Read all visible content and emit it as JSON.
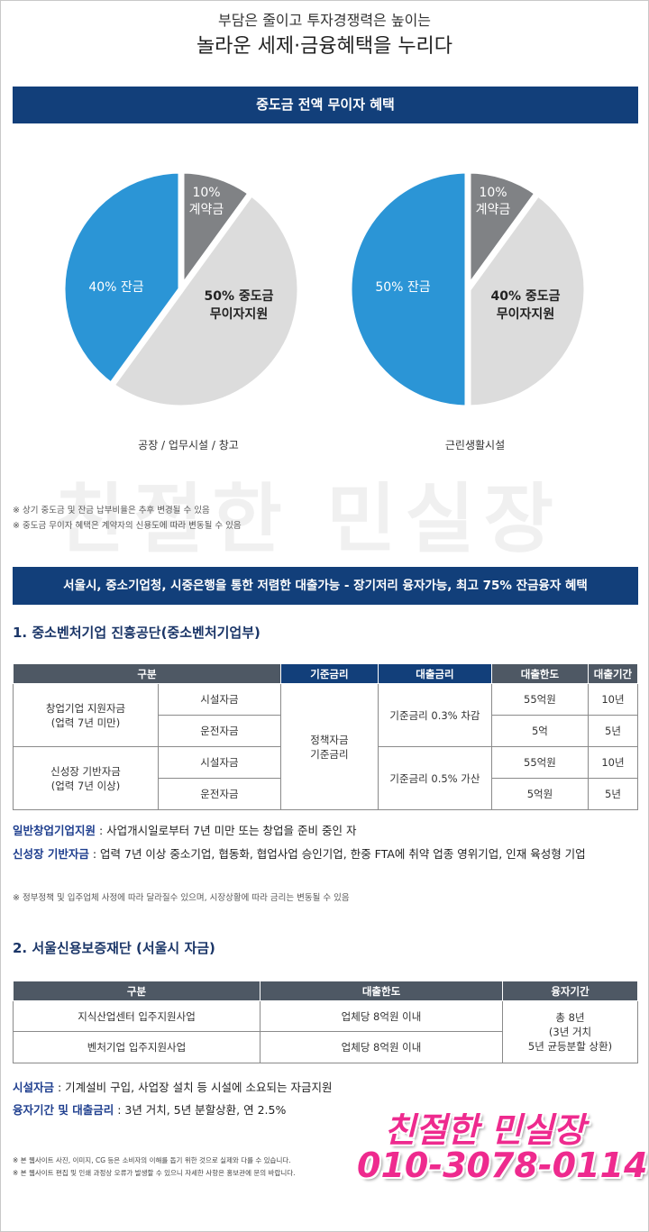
{
  "header": {
    "subtitle": "부담은 줄이고 투자경쟁력은 높이는",
    "title": "놀라운 세제·금융혜택을 누리다"
  },
  "banner1": "중도금 전액 무이자 혜택",
  "pies": [
    {
      "caption": "공장 / 업무시설 / 창고",
      "slices": [
        {
          "value": 10,
          "value_label": "10%",
          "name": "계약금",
          "color": "#808285"
        },
        {
          "value": 50,
          "value_label": "50%",
          "name": "중도금",
          "note": "무이자지원",
          "color": "#dcdcdc"
        },
        {
          "value": 40,
          "value_label": "40%",
          "name": "잔금",
          "color": "#2b95d6"
        }
      ]
    },
    {
      "caption": "근린생활시설",
      "slices": [
        {
          "value": 10,
          "value_label": "10%",
          "name": "계약금",
          "color": "#808285"
        },
        {
          "value": 40,
          "value_label": "40%",
          "name": "중도금",
          "note": "무이자지원",
          "color": "#dcdcdc"
        },
        {
          "value": 50,
          "value_label": "50%",
          "name": "잔금",
          "color": "#2b95d6"
        }
      ]
    }
  ],
  "notes1": [
    "※ 상기 중도금 및 잔금 납부비율은 추후 변경될 수 있음",
    "※ 중도금 무이자 혜택은 계약자의 신용도에 따라 변동될 수 있음"
  ],
  "watermark": "친절한 민실장",
  "banner2": "서울시, 중소기업청, 시중은행을 통한 저렴한 대출가능 - 장기저리 융자가능, 최고 75% 잔금융자 혜택",
  "section1": {
    "heading": "1. 중소벤처기업 진흥공단(중소벤처기업부)",
    "table": {
      "header": [
        "구분",
        "기준금리",
        "대출금리",
        "대출한도",
        "대출기간"
      ],
      "groups": [
        {
          "name": "창업기업 지원자금",
          "sub": "(업력 7년 미만)",
          "loan_rate": "기준금리 0.3% 차감",
          "rows": [
            [
              "시설자금",
              "55억원",
              "10년"
            ],
            [
              "운전자금",
              "5억",
              "5년"
            ]
          ]
        },
        {
          "name": "신성장 기반자금",
          "sub": "(업력 7년 이상)",
          "loan_rate": "기준금리 0.5% 가산",
          "rows": [
            [
              "시설자금",
              "55억원",
              "10년"
            ],
            [
              "운전자금",
              "5억원",
              "5년"
            ]
          ]
        }
      ],
      "base_rate": [
        "정책자금",
        "기준금리"
      ]
    },
    "definitions": [
      {
        "term": "일반창업기업지원",
        "text": " : 사업개시일로부터 7년 미만 또는 창업을 준비 중인 자"
      },
      {
        "term": "신성장 기반자금",
        "text": " : 업력 7년 이상 중소기업, 협동화, 협업사업 승인기업, 한중 FTA에 취약 업종 영위기업, 인재 육성형 기업"
      }
    ],
    "note": "※ 정부정책 및 입주업체 사정에 따라 달라질수 있으며, 시장상황에 따라 금리는 변동될 수 있음"
  },
  "section2": {
    "heading": "2. 서울신용보증재단 (서울시 자금)",
    "table": {
      "header": [
        "구분",
        "대출한도",
        "융자기간"
      ],
      "rows": [
        [
          "지식산업센터 입주지원사업",
          "업체당 8억원 이내"
        ],
        [
          "벤처기업 입주지원사업",
          "업체당 8억원 이내"
        ]
      ],
      "period": [
        "총 8년",
        "(3년 거치",
        "5년 균등분할 상환)"
      ]
    },
    "definitions": [
      {
        "term": "시설자금",
        "text": " : 기계설비 구입, 사업장 설치 등 시설에 소요되는 자금지원"
      },
      {
        "term": "융자기간 및 대출금리",
        "text": " : 3년 거치, 5년 분할상환, 연 2.5%"
      }
    ]
  },
  "footer": [
    "※ 본 웹사이트 사진, 이미지, CG 등은 소비자의 이해를 돕기 위한 것으로 실제와 다를 수 있습니다.",
    "※ 본 웹사이트 편집 및 인쇄 과정상 오류가 발생할 수 있으니 자세한 사항은 홍보관에 문의 바랍니다."
  ],
  "contact": {
    "name": "친절한 민실장",
    "phone": "010-3078-0114"
  }
}
